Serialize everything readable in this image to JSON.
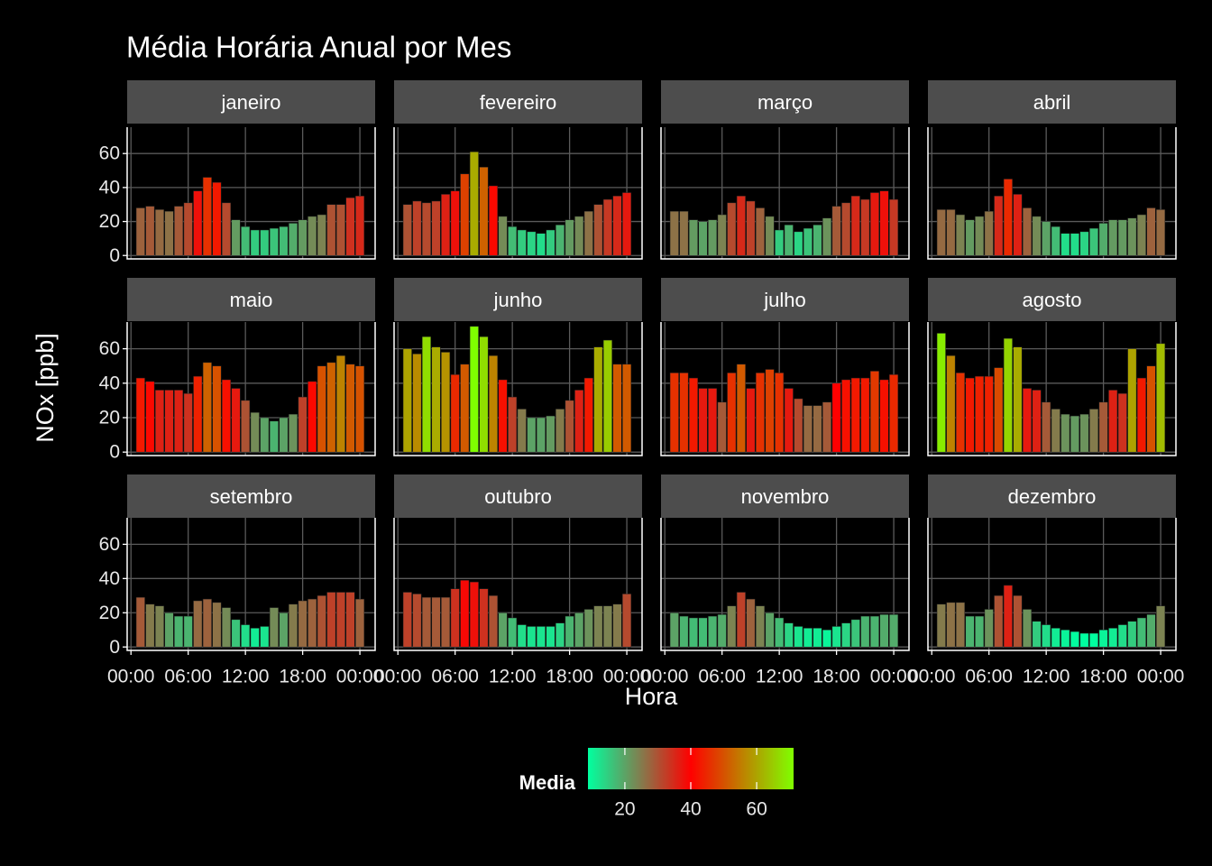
{
  "chart_data": {
    "type": "bar",
    "title": "Média Horária Anual por Mes",
    "x_label": "Hora",
    "y_label": "NOx [ppb]",
    "x": [
      1,
      2,
      3,
      4,
      5,
      6,
      7,
      8,
      9,
      10,
      11,
      12,
      13,
      14,
      15,
      16,
      17,
      18,
      19,
      20,
      21,
      22,
      23,
      24
    ],
    "xlim": [
      -0.4,
      25.6
    ],
    "xticks": [
      {
        "value": 0,
        "label": "00:00"
      },
      {
        "value": 6,
        "label": "06:00"
      },
      {
        "value": 12,
        "label": "12:00"
      },
      {
        "value": 18,
        "label": "18:00"
      },
      {
        "value": 24,
        "label": "00:00"
      }
    ],
    "ylim": [
      -2,
      75.5
    ],
    "yticks": [
      0,
      20,
      40,
      60
    ],
    "grid": true,
    "colorbar": {
      "title": "Media",
      "limits": [
        8.8,
        71.2
      ],
      "midpoint": 40,
      "ticks": [
        20,
        40,
        60
      ],
      "colors": [
        "#00ff9f",
        "#ff0000",
        "#7fff00"
      ]
    },
    "facets": [
      {
        "title": "janeiro",
        "values": [
          28,
          29,
          27,
          26,
          29,
          31,
          38,
          46,
          43,
          31,
          21,
          17,
          15,
          15,
          16,
          17,
          19,
          21,
          23,
          24,
          30,
          30,
          34,
          35
        ]
      },
      {
        "title": "fevereiro",
        "values": [
          30,
          32,
          31,
          32,
          36,
          38,
          48,
          61,
          52,
          41,
          23,
          17,
          15,
          14,
          13,
          15,
          18,
          21,
          23,
          26,
          30,
          33,
          35,
          37
        ]
      },
      {
        "title": "março",
        "values": [
          26,
          26,
          21,
          20,
          21,
          24,
          31,
          35,
          32,
          28,
          23,
          15,
          18,
          14,
          16,
          18,
          22,
          29,
          31,
          35,
          33,
          37,
          38,
          33
        ]
      },
      {
        "title": "abril",
        "values": [
          27,
          27,
          24,
          21,
          23,
          26,
          35,
          45,
          36,
          28,
          23,
          20,
          17,
          13,
          13,
          14,
          16,
          19,
          21,
          21,
          22,
          24,
          28,
          27
        ]
      },
      {
        "title": "maio",
        "values": [
          43,
          41,
          36,
          36,
          36,
          34,
          44,
          52,
          50,
          42,
          37,
          30,
          23,
          20,
          18,
          20,
          22,
          32,
          41,
          50,
          52,
          56,
          51,
          50
        ]
      },
      {
        "title": "junho",
        "values": [
          60,
          57,
          67,
          61,
          58,
          45,
          51,
          73,
          67,
          56,
          42,
          32,
          25,
          20,
          20,
          21,
          25,
          30,
          36,
          43,
          61,
          65,
          51,
          51
        ]
      },
      {
        "title": "julho",
        "values": [
          46,
          46,
          43,
          37,
          37,
          29,
          46,
          51,
          37,
          46,
          48,
          46,
          37,
          31,
          27,
          27,
          29,
          40,
          42,
          43,
          43,
          47,
          42,
          45
        ]
      },
      {
        "title": "agosto",
        "values": [
          69,
          56,
          46,
          43,
          44,
          44,
          49,
          66,
          61,
          37,
          36,
          29,
          25,
          22,
          21,
          22,
          25,
          29,
          36,
          34,
          60,
          43,
          50,
          63
        ]
      },
      {
        "title": "setembro",
        "values": [
          29,
          25,
          24,
          20,
          18,
          18,
          27,
          28,
          26,
          23,
          16,
          13,
          11,
          12,
          23,
          20,
          25,
          27,
          28,
          30,
          32,
          32,
          32,
          28
        ]
      },
      {
        "title": "outubro",
        "values": [
          32,
          31,
          29,
          29,
          29,
          34,
          39,
          38,
          34,
          30,
          20,
          17,
          13,
          12,
          12,
          12,
          14,
          18,
          20,
          22,
          24,
          24,
          25,
          31
        ]
      },
      {
        "title": "novembro",
        "values": [
          20,
          18,
          17,
          17,
          18,
          19,
          24,
          32,
          28,
          24,
          20,
          17,
          14,
          12,
          11,
          11,
          10,
          12,
          14,
          16,
          18,
          18,
          19,
          19
        ]
      },
      {
        "title": "dezembro",
        "values": [
          25,
          26,
          26,
          18,
          18,
          22,
          30,
          36,
          30,
          22,
          15,
          13,
          11,
          10,
          9,
          8,
          8,
          10,
          11,
          13,
          15,
          17,
          19,
          24
        ]
      }
    ]
  }
}
